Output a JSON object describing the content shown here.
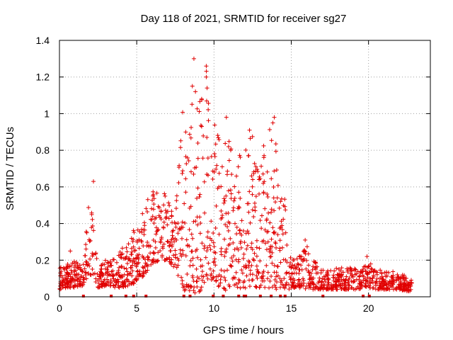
{
  "chart_data": {
    "type": "scatter",
    "title": "Day 118 of 2021, SRMTID for receiver sg27",
    "xlabel": "GPS time / hours",
    "ylabel": "SRMTID / TECUs",
    "xlim": [
      0,
      24
    ],
    "ylim": [
      0,
      1.4
    ],
    "xticks": [
      0,
      5,
      10,
      15,
      20
    ],
    "yticks": [
      0,
      0.2,
      0.4,
      0.6,
      0.8,
      1.0,
      1.2,
      1.4
    ],
    "xtick_labels": [
      "0",
      "5",
      "10",
      "15",
      "20"
    ],
    "ytick_labels": [
      "0",
      "0.2",
      "0.4",
      "0.6",
      "0.8",
      "1",
      "1.2",
      "1.4"
    ],
    "grid": true,
    "marker": "plus",
    "color": "#e00000",
    "series_name": "SRMTID",
    "envelope": {
      "x": [
        0,
        0.5,
        1,
        1.5,
        1.8,
        2.0,
        2.2,
        2.5,
        3,
        3.5,
        4,
        4.5,
        5,
        5.5,
        6,
        6.5,
        7,
        7.5,
        8,
        8.3,
        8.7,
        9,
        9.5,
        10,
        10.5,
        11,
        11.5,
        12,
        12.5,
        13,
        13.5,
        14,
        14.5,
        14.8,
        15,
        15.5,
        16,
        16.5,
        17,
        17.5,
        18,
        18.5,
        19,
        19.5,
        20,
        20.5,
        21,
        21.5,
        22,
        22.5,
        22.8
      ],
      "low": [
        0.04,
        0.05,
        0.05,
        0.06,
        0.1,
        0.12,
        0.1,
        0.05,
        0.06,
        0.05,
        0.05,
        0.06,
        0.08,
        0.12,
        0.18,
        0.2,
        0.2,
        0.15,
        0.05,
        0.0,
        0.0,
        0.01,
        0.1,
        0.08,
        0.03,
        0.04,
        0.05,
        0.04,
        0.05,
        0.05,
        0.05,
        0.04,
        0.05,
        0.03,
        0.05,
        0.05,
        0.04,
        0.04,
        0.04,
        0.04,
        0.04,
        0.04,
        0.04,
        0.04,
        0.05,
        0.04,
        0.04,
        0.04,
        0.04,
        0.03,
        0.03
      ],
      "high": [
        0.16,
        0.18,
        0.2,
        0.16,
        0.45,
        0.62,
        0.4,
        0.18,
        0.2,
        0.22,
        0.26,
        0.3,
        0.42,
        0.5,
        0.58,
        0.58,
        0.55,
        0.45,
        1.1,
        0.9,
        1.3,
        1.05,
        1.28,
        0.95,
        0.85,
        0.85,
        0.78,
        0.8,
        0.92,
        0.82,
        0.9,
        0.98,
        0.6,
        0.4,
        0.2,
        0.22,
        0.3,
        0.2,
        0.15,
        0.15,
        0.16,
        0.16,
        0.16,
        0.14,
        0.2,
        0.16,
        0.14,
        0.14,
        0.13,
        0.11,
        0.09
      ]
    },
    "outliers": [
      {
        "x": 8.7,
        "y": 1.3
      },
      {
        "x": 9.5,
        "y": 1.26
      },
      {
        "x": 9.5,
        "y": 1.2
      },
      {
        "x": 8.6,
        "y": 1.15
      },
      {
        "x": 8.8,
        "y": 1.12
      },
      {
        "x": 9.2,
        "y": 1.08
      },
      {
        "x": 10.8,
        "y": 0.98
      },
      {
        "x": 13.9,
        "y": 0.98
      },
      {
        "x": 12.3,
        "y": 0.91
      },
      {
        "x": 2.2,
        "y": 0.63
      },
      {
        "x": 0.7,
        "y": 0.25
      },
      {
        "x": 15.9,
        "y": 0.31
      },
      {
        "x": 19.9,
        "y": 0.22
      }
    ],
    "gap_markers_x": [
      1.55,
      3.35,
      4.3,
      4.8,
      5.6,
      8.05,
      8.45,
      9.95,
      10.6,
      11.6,
      11.95,
      12.05,
      13.0,
      13.7,
      14.3,
      14.6,
      17.05,
      19.65,
      20.05
    ]
  }
}
